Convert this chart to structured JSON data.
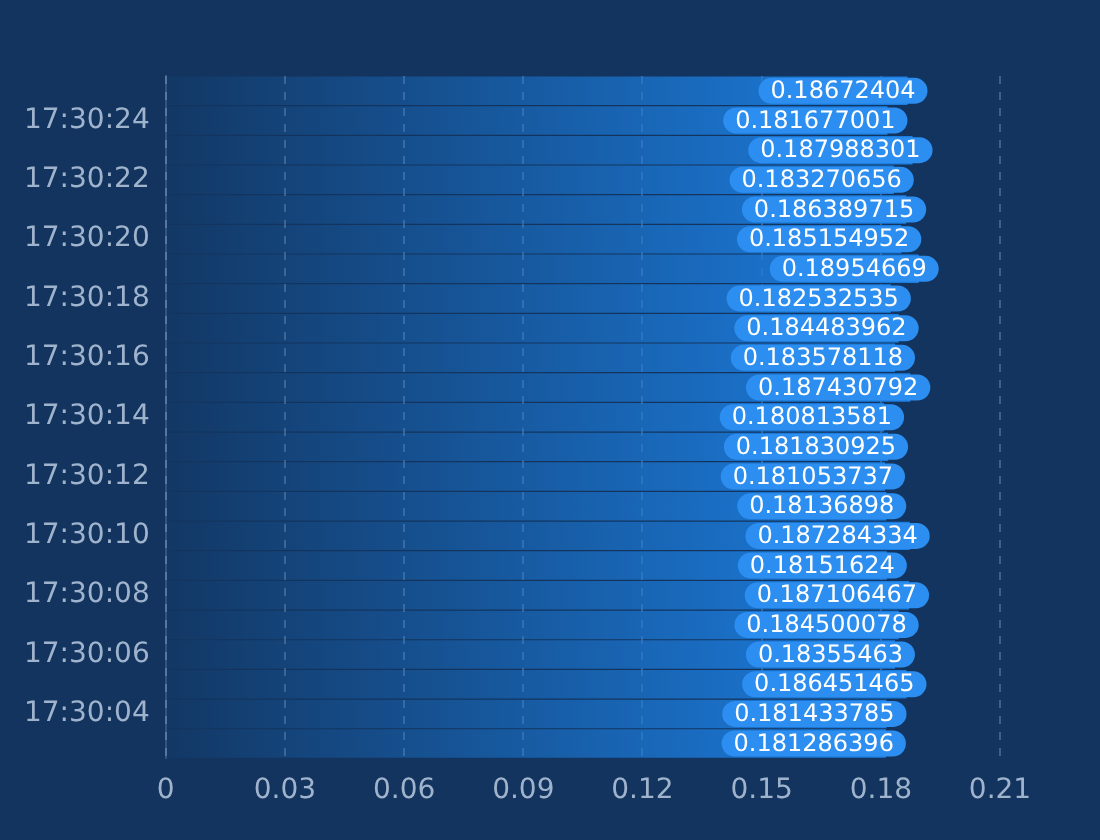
{
  "chart_data": {
    "type": "bar",
    "orientation": "horizontal",
    "categories": [
      null,
      "17:30:24",
      null,
      "17:30:22",
      null,
      "17:30:20",
      null,
      "17:30:18",
      null,
      "17:30:16",
      null,
      "17:30:14",
      null,
      "17:30:12",
      null,
      "17:30:10",
      null,
      "17:30:08",
      null,
      "17:30:06",
      null,
      "17:30:04",
      null
    ],
    "values": [
      0.18672404,
      0.181677001,
      0.187988301,
      0.183270656,
      0.186389715,
      0.185154952,
      0.18954669,
      0.182532535,
      0.184483962,
      0.183578118,
      0.187430792,
      0.180813581,
      0.181830925,
      0.181053737,
      0.18136898,
      0.187284334,
      0.18151624,
      0.187106467,
      0.184500078,
      0.18355463,
      0.186451465,
      0.181433785,
      0.181286396
    ],
    "color": "#1c7ee0",
    "xlim": [
      0,
      0.21
    ],
    "xticks": [
      0,
      0.03,
      0.06,
      0.09,
      0.12,
      0.15,
      0.18,
      0.21
    ],
    "grid": "x",
    "data_labels": true
  }
}
